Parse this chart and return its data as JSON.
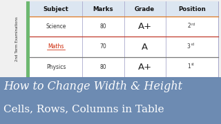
{
  "background_color": "#f0f0f0",
  "overlay_color": "#5b7daa",
  "overlay_alpha": 0.88,
  "table_bg": "#ffffff",
  "left_bar_color": "#6db870",
  "header_row_color": "#dce6f1",
  "header_text_color": "#111111",
  "row_divider_orange": "#e07820",
  "row_divider_red": "#c0392b",
  "row_divider_dark": "#777777",
  "col_headers": [
    "Subject",
    "Marks",
    "Grade",
    "Position"
  ],
  "rows": [
    [
      "Science",
      "80",
      "A+",
      "2"
    ],
    [
      "Maths",
      "70",
      "A",
      "3"
    ],
    [
      "Physics",
      "80",
      "A+",
      "1"
    ]
  ],
  "grade_large": [
    "A+",
    "A",
    "A+"
  ],
  "position_sup": [
    "nd",
    "rd",
    "st"
  ],
  "side_label": "2nd Term Examinations",
  "title_line1": "How to Change Width & Height",
  "title_line2": "Cells, Rows, Columns in Table",
  "title_color": "#ffffff",
  "title_fontsize1": 11.5,
  "title_fontsize2": 11.0,
  "maths_color": "#cc2200"
}
